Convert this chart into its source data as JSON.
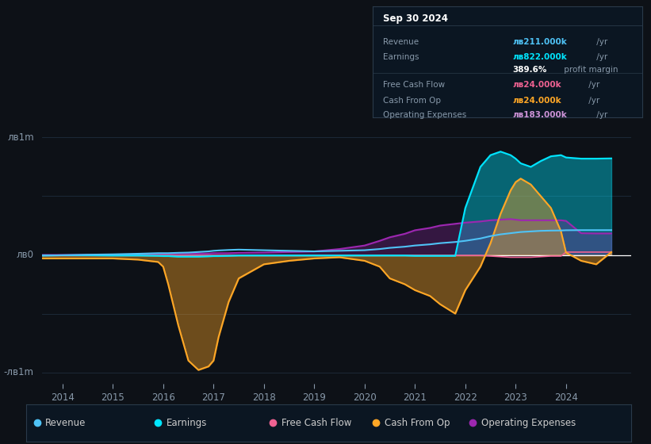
{
  "bg_color": "#0d1117",
  "title": "Sep 30 2024",
  "ylabel_top": "лв1m",
  "ylabel_zero": "лв0",
  "ylabel_bot": "-лв1m",
  "ylim": [
    -1100000,
    1150000
  ],
  "xlim_start": 2013.6,
  "xlim_end": 2025.3,
  "xticks": [
    2014,
    2015,
    2016,
    2017,
    2018,
    2019,
    2020,
    2021,
    2022,
    2023,
    2024
  ],
  "colors": {
    "revenue": "#4fc3f7",
    "earnings": "#00e5ff",
    "free_cash_flow": "#f06292",
    "cash_from_op": "#ffa726",
    "operating_expenses": "#9c27b0"
  },
  "legend": [
    {
      "label": "Revenue",
      "color": "#4fc3f7"
    },
    {
      "label": "Earnings",
      "color": "#00e5ff"
    },
    {
      "label": "Free Cash Flow",
      "color": "#f06292"
    },
    {
      "label": "Cash From Op",
      "color": "#ffa726"
    },
    {
      "label": "Operating Expenses",
      "color": "#9c27b0"
    }
  ],
  "info_rows": [
    {
      "label": "Revenue",
      "value": "лв211.000k",
      "suffix": "/yr",
      "color": "#4fc3f7",
      "sep_before": false
    },
    {
      "label": "Earnings",
      "value": "лв822.000k",
      "suffix": "/yr",
      "color": "#00e5ff",
      "sep_before": false
    },
    {
      "label": "",
      "value": "389.6%",
      "suffix": "profit margin",
      "color": "#ffffff",
      "sep_before": false
    },
    {
      "label": "Free Cash Flow",
      "value": "лв24.000k",
      "suffix": "/yr",
      "color": "#f06292",
      "sep_before": true
    },
    {
      "label": "Cash From Op",
      "value": "лв24.000k",
      "suffix": "/yr",
      "color": "#ffa726",
      "sep_before": false
    },
    {
      "label": "Operating Expenses",
      "value": "лв183.000k",
      "suffix": "/yr",
      "color": "#ce93d8",
      "sep_before": false
    }
  ],
  "years": [
    2013.6,
    2014.0,
    2014.5,
    2015.0,
    2015.5,
    2015.9,
    2016.0,
    2016.1,
    2016.3,
    2016.5,
    2016.7,
    2016.9,
    2017.0,
    2017.1,
    2017.3,
    2017.5,
    2018.0,
    2018.5,
    2019.0,
    2019.5,
    2020.0,
    2020.3,
    2020.5,
    2020.8,
    2021.0,
    2021.3,
    2021.5,
    2021.8,
    2022.0,
    2022.3,
    2022.5,
    2022.7,
    2022.9,
    2023.0,
    2023.1,
    2023.3,
    2023.5,
    2023.7,
    2023.9,
    2024.0,
    2024.3,
    2024.6,
    2024.9
  ],
  "revenue": [
    -5000,
    -3000,
    2000,
    5000,
    10000,
    15000,
    15000,
    15000,
    18000,
    20000,
    25000,
    30000,
    35000,
    38000,
    42000,
    45000,
    40000,
    35000,
    30000,
    35000,
    40000,
    50000,
    60000,
    70000,
    80000,
    90000,
    100000,
    110000,
    120000,
    140000,
    160000,
    175000,
    185000,
    190000,
    195000,
    200000,
    205000,
    207000,
    208000,
    210000,
    211000,
    211000,
    211000
  ],
  "earnings": [
    -5000,
    -3000,
    -3000,
    -5000,
    -5000,
    -8000,
    -10000,
    -10000,
    -15000,
    -15000,
    -15000,
    -12000,
    -10000,
    -10000,
    -8000,
    -5000,
    -5000,
    -5000,
    -5000,
    -5000,
    -5000,
    -5000,
    -5000,
    -5000,
    -8000,
    -8000,
    -8000,
    -8000,
    400000,
    750000,
    850000,
    880000,
    850000,
    820000,
    780000,
    750000,
    800000,
    840000,
    850000,
    830000,
    820000,
    820000,
    822000
  ],
  "free_cash_flow": [
    -5000,
    -5000,
    -5000,
    -5000,
    -5000,
    -5000,
    -5000,
    -5000,
    -5000,
    -5000,
    -5000,
    -5000,
    -5000,
    -5000,
    -5000,
    -5000,
    -5000,
    -5000,
    -5000,
    -5000,
    -5000,
    -5000,
    -5000,
    -5000,
    -5000,
    -5000,
    -5000,
    -5000,
    -5000,
    -5000,
    -10000,
    -15000,
    -20000,
    -20000,
    -20000,
    -20000,
    -15000,
    -10000,
    -10000,
    24000,
    24000,
    24000,
    24000
  ],
  "cash_from_op": [
    -30000,
    -30000,
    -30000,
    -30000,
    -40000,
    -60000,
    -100000,
    -250000,
    -600000,
    -900000,
    -980000,
    -950000,
    -900000,
    -700000,
    -400000,
    -200000,
    -80000,
    -50000,
    -30000,
    -20000,
    -50000,
    -100000,
    -200000,
    -250000,
    -300000,
    -350000,
    -420000,
    -500000,
    -300000,
    -100000,
    100000,
    350000,
    550000,
    620000,
    650000,
    600000,
    500000,
    400000,
    200000,
    20000,
    -50000,
    -80000,
    24000
  ],
  "operating_expenses": [
    0,
    0,
    0,
    0,
    5000,
    10000,
    10000,
    10000,
    12000,
    12000,
    12000,
    12000,
    15000,
    15000,
    15000,
    18000,
    20000,
    25000,
    30000,
    50000,
    80000,
    120000,
    150000,
    180000,
    210000,
    230000,
    250000,
    265000,
    275000,
    285000,
    295000,
    300000,
    305000,
    300000,
    295000,
    295000,
    295000,
    295000,
    295000,
    290000,
    185000,
    183000,
    183000
  ]
}
